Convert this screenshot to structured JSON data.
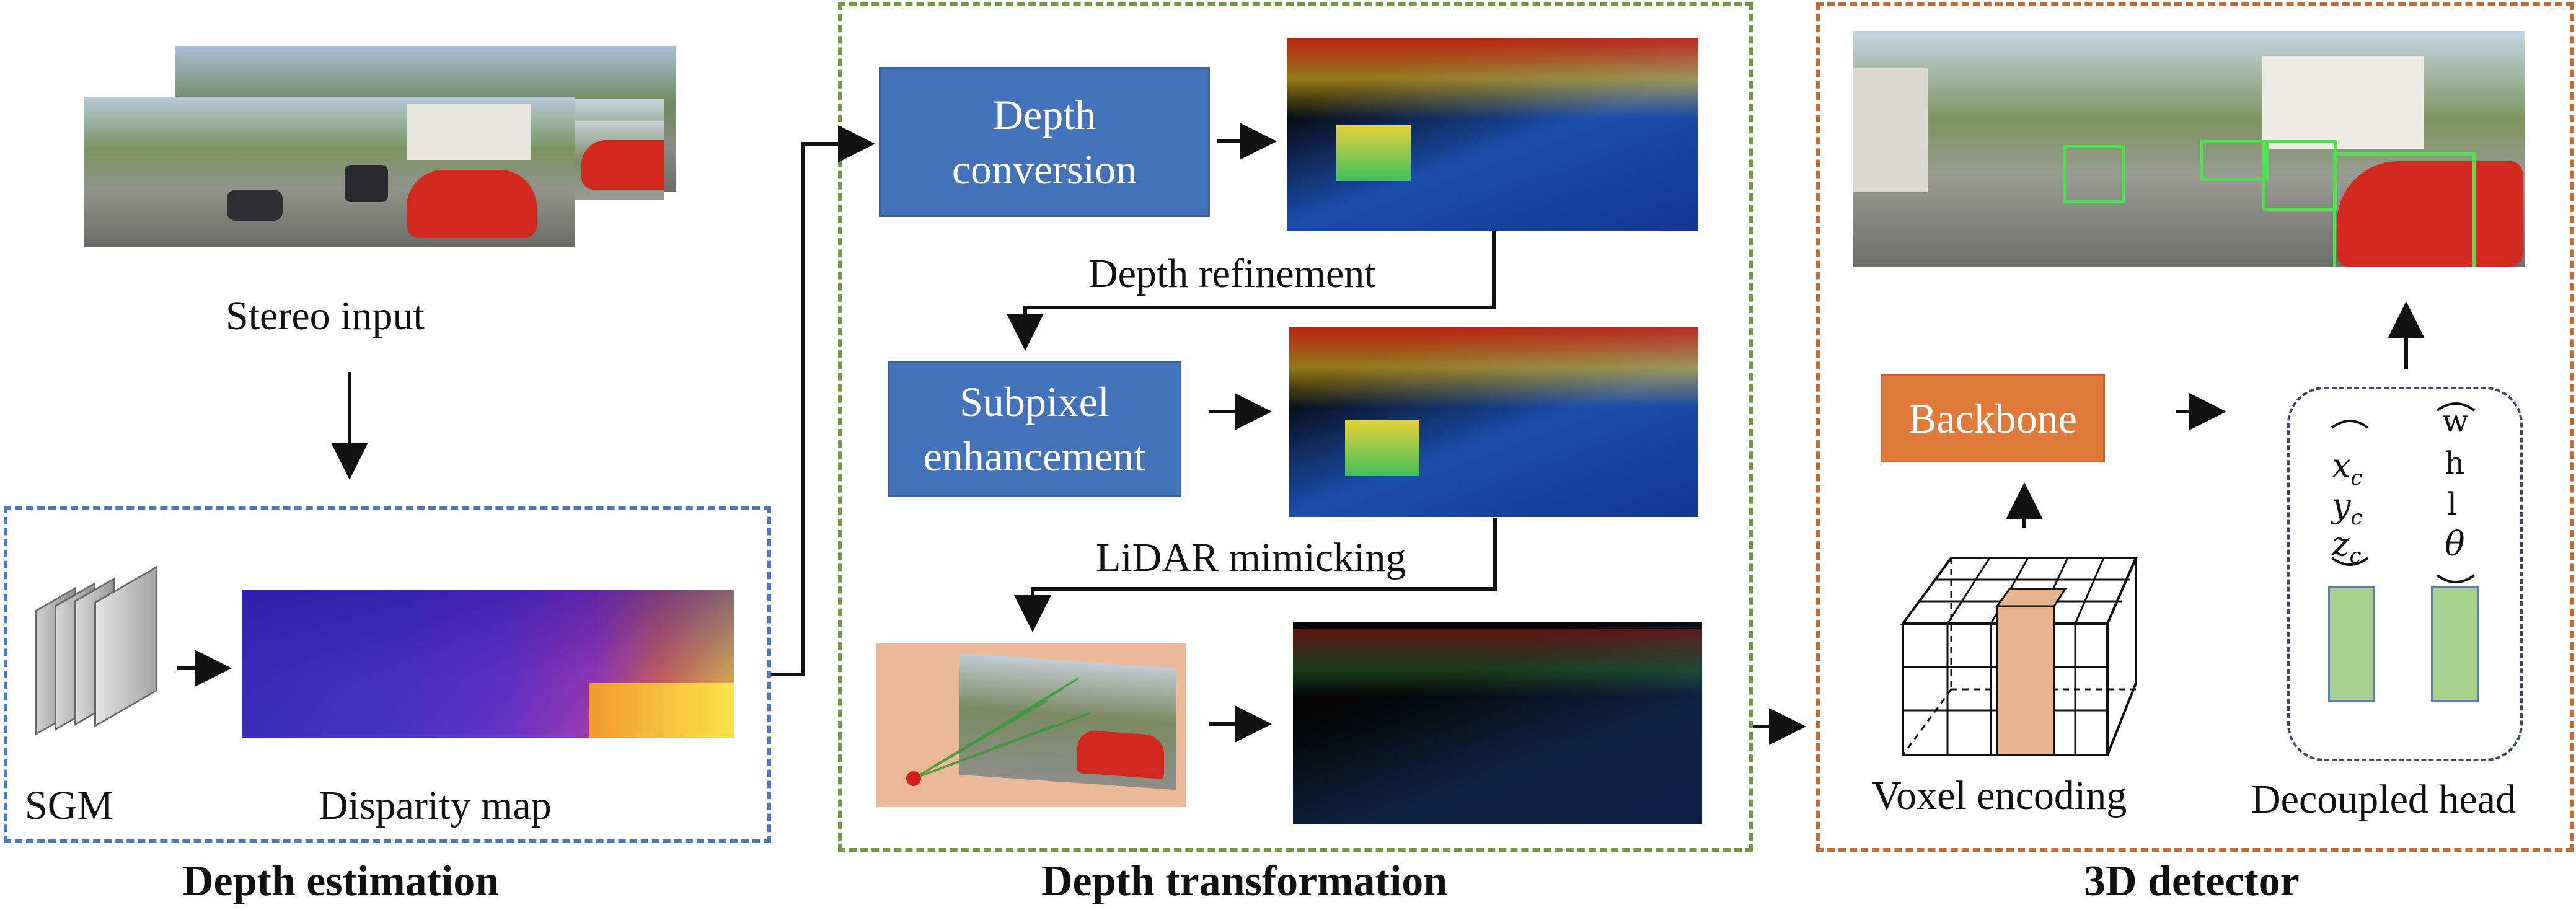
{
  "panels": {
    "estimation_title": "Depth estimation",
    "transformation_title": "Depth transformation",
    "detector_title": "3D detector"
  },
  "estimation": {
    "stereo_label": "Stereo input",
    "sgm_label": "SGM",
    "disparity_label": "Disparity map"
  },
  "transformation": {
    "depth_conversion": "Depth conversion",
    "depth_refinement": "Depth refinement",
    "subpixel_enhancement": "Subpixel enhancement",
    "lidar_mimicking": "LiDAR mimicking"
  },
  "detector": {
    "backbone": "Backbone",
    "voxel_label": "Voxel encoding",
    "head_label": "Decoupled head",
    "head_left": [
      "x",
      "y",
      "z"
    ],
    "head_left_sub": "c",
    "head_right": [
      "w",
      "h",
      "l",
      "θ"
    ]
  },
  "colors": {
    "blue_panel": "#4a78b8",
    "green_panel": "#6f9a3c",
    "orange_panel": "#c46a30",
    "blue_box": "#4472b8",
    "orange_box": "#e07a3a",
    "green_bar": "#a9d18e"
  }
}
